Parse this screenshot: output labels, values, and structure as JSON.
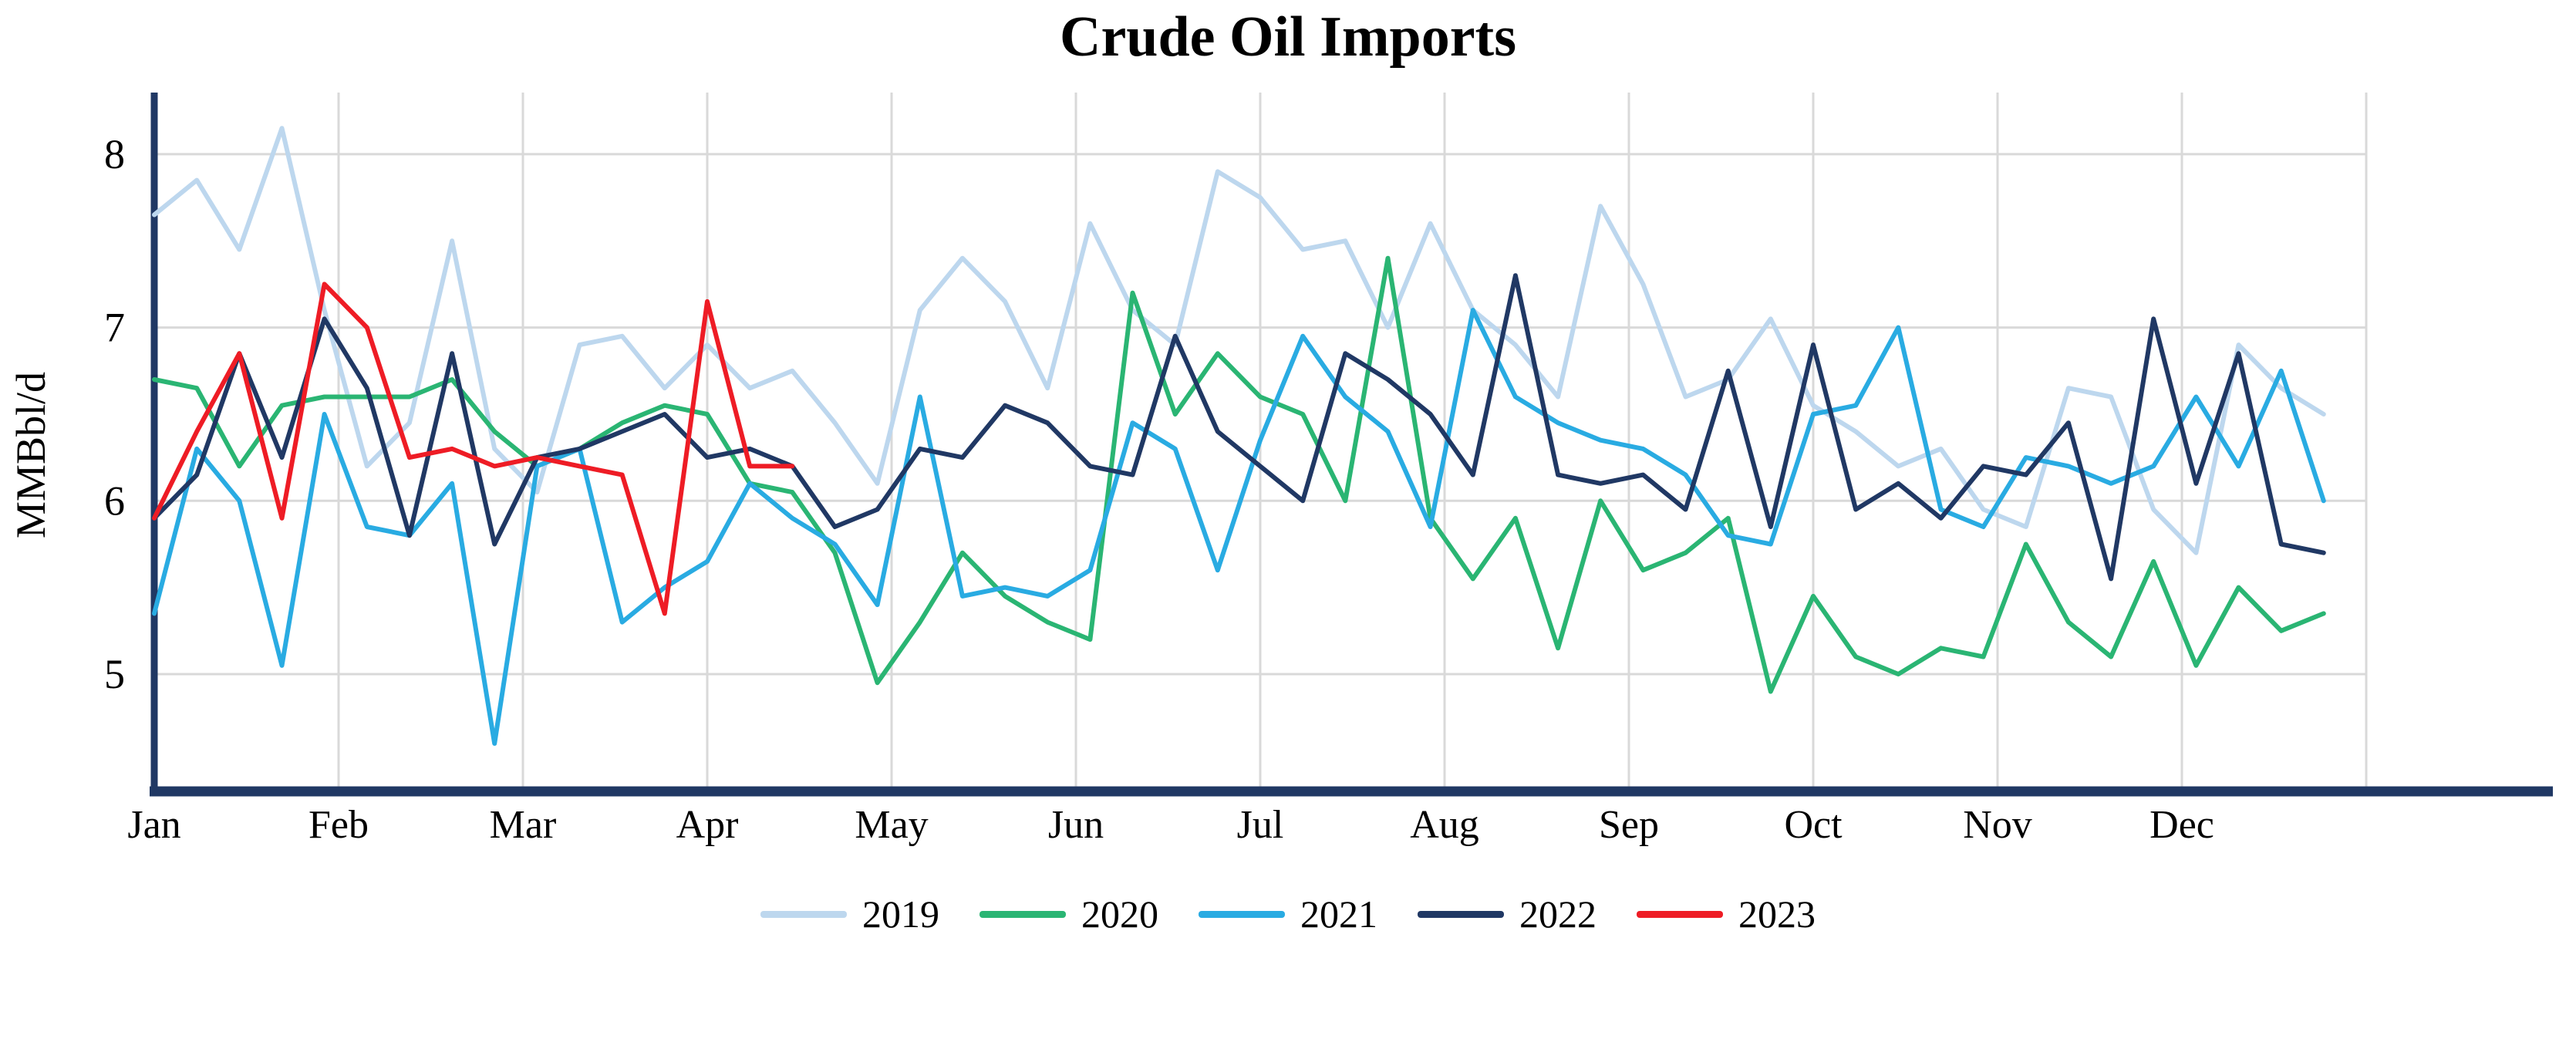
{
  "title": "Crude Oil Imports",
  "chart_data": {
    "type": "line",
    "title": "Crude Oil Imports",
    "xlabel": "",
    "ylabel": "MMBbl/d",
    "x_unit": "week",
    "x_tick_labels": [
      "Jan",
      "Feb",
      "Mar",
      "Apr",
      "May",
      "Jun",
      "Jul",
      "Aug",
      "Sep",
      "Oct",
      "Nov",
      "Dec"
    ],
    "y_ticks": [
      5,
      6,
      7,
      8
    ],
    "ylim": [
      4.4,
      8.3
    ],
    "grid": true,
    "legend_position": "bottom",
    "axis_color": "#203864",
    "grid_color": "#d9d9d9",
    "text_color": "#000000",
    "series": [
      {
        "name": "2019",
        "color": "#bdd7ee",
        "values": [
          7.65,
          7.85,
          7.45,
          8.15,
          7.1,
          6.2,
          6.45,
          7.5,
          6.3,
          6.05,
          6.9,
          6.95,
          6.65,
          6.9,
          6.65,
          6.75,
          6.45,
          6.1,
          7.1,
          7.4,
          7.15,
          6.65,
          7.6,
          7.1,
          6.9,
          7.9,
          7.75,
          7.45,
          7.5,
          7.0,
          7.6,
          7.1,
          6.9,
          6.6,
          7.7,
          7.25,
          6.6,
          6.7,
          7.05,
          6.55,
          6.4,
          6.2,
          6.3,
          5.95,
          5.85,
          6.65,
          6.6,
          5.95,
          5.7,
          6.9,
          6.65,
          6.5
        ]
      },
      {
        "name": "2020",
        "color": "#2ab573",
        "values": [
          6.7,
          6.65,
          6.2,
          6.55,
          6.6,
          6.6,
          6.6,
          6.7,
          6.4,
          6.2,
          6.3,
          6.45,
          6.55,
          6.5,
          6.1,
          6.05,
          5.7,
          4.95,
          5.3,
          5.7,
          5.45,
          5.3,
          5.2,
          7.2,
          6.5,
          6.85,
          6.6,
          6.5,
          6.0,
          7.4,
          5.9,
          5.55,
          5.9,
          5.15,
          6.0,
          5.6,
          5.7,
          5.9,
          4.9,
          5.45,
          5.1,
          5.0,
          5.15,
          5.1,
          5.75,
          5.3,
          5.1,
          5.65,
          5.05,
          5.5,
          5.25,
          5.35
        ]
      },
      {
        "name": "2021",
        "color": "#29abe2",
        "values": [
          5.35,
          6.3,
          6.0,
          5.05,
          6.5,
          5.85,
          5.8,
          6.1,
          4.6,
          6.2,
          6.3,
          5.3,
          5.5,
          5.65,
          6.1,
          5.9,
          5.75,
          5.4,
          6.6,
          5.45,
          5.5,
          5.45,
          5.6,
          6.45,
          6.3,
          5.6,
          6.35,
          6.95,
          6.6,
          6.4,
          5.85,
          7.1,
          6.6,
          6.45,
          6.35,
          6.3,
          6.15,
          5.8,
          5.75,
          6.5,
          6.55,
          7.0,
          5.95,
          5.85,
          6.25,
          6.2,
          6.1,
          6.2,
          6.6,
          6.2,
          6.75,
          6.0
        ]
      },
      {
        "name": "2022",
        "color": "#203864",
        "values": [
          5.9,
          6.15,
          6.85,
          6.25,
          7.05,
          6.65,
          5.8,
          6.85,
          5.75,
          6.25,
          6.3,
          6.4,
          6.5,
          6.25,
          6.3,
          6.2,
          5.85,
          5.95,
          6.3,
          6.25,
          6.55,
          6.45,
          6.2,
          6.15,
          6.95,
          6.4,
          6.2,
          6.0,
          6.85,
          6.7,
          6.5,
          6.15,
          7.3,
          6.15,
          6.1,
          6.15,
          5.95,
          6.75,
          5.85,
          6.9,
          5.95,
          6.1,
          5.9,
          6.2,
          6.15,
          6.45,
          5.55,
          7.05,
          6.1,
          6.85,
          5.75,
          5.7
        ]
      },
      {
        "name": "2023",
        "color": "#ee1c25",
        "values": [
          5.9,
          6.4,
          6.85,
          5.9,
          7.25,
          7.0,
          6.25,
          6.3,
          6.2,
          6.25,
          6.2,
          6.15,
          5.35,
          7.15,
          6.2,
          6.2
        ]
      }
    ]
  }
}
